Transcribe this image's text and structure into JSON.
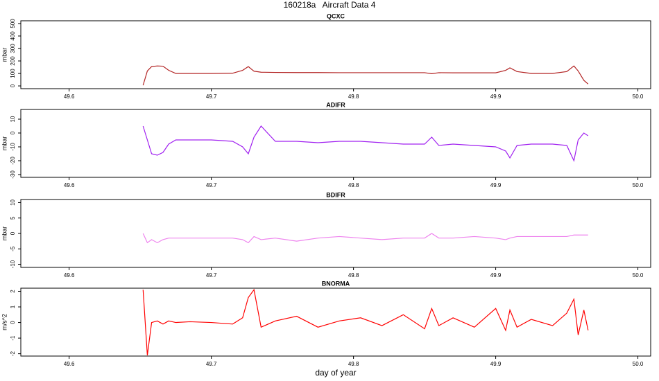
{
  "title": "160218a   Aircraft Data 4",
  "chart_data": [
    {
      "type": "line",
      "title": "QCXC",
      "ylabel": "mbar",
      "color": "#b22222",
      "x": [
        49.652,
        49.655,
        49.658,
        49.662,
        49.666,
        49.67,
        49.675,
        49.685,
        49.7,
        49.715,
        49.722,
        49.726,
        49.73,
        49.735,
        49.745,
        49.76,
        49.775,
        49.79,
        49.805,
        49.82,
        49.835,
        49.85,
        49.855,
        49.86,
        49.87,
        49.885,
        49.9,
        49.907,
        49.91,
        49.915,
        49.925,
        49.94,
        49.95,
        49.955,
        49.958,
        49.962,
        49.965
      ],
      "values": [
        5,
        120,
        155,
        160,
        158,
        125,
        100,
        100,
        100,
        102,
        125,
        155,
        118,
        110,
        108,
        107,
        107,
        106,
        106,
        106,
        106,
        106,
        98,
        106,
        105,
        105,
        105,
        125,
        145,
        115,
        100,
        100,
        115,
        160,
        120,
        45,
        15
      ],
      "xlim": [
        49.566,
        50.009
      ],
      "xticks": [
        49.6,
        49.7,
        49.8,
        49.9,
        {
          "value": 50,
          "label": "50.0"
        }
      ],
      "ylim": [
        -22,
        522
      ],
      "yticks": [
        0,
        100,
        200,
        300,
        400,
        500
      ]
    },
    {
      "type": "line",
      "title": "ADIFR",
      "ylabel": "mbar",
      "color": "#a020f0",
      "x": [
        49.652,
        49.655,
        49.658,
        49.662,
        49.666,
        49.67,
        49.675,
        49.685,
        49.7,
        49.715,
        49.722,
        49.726,
        49.73,
        49.735,
        49.745,
        49.76,
        49.775,
        49.79,
        49.805,
        49.82,
        49.835,
        49.85,
        49.855,
        49.86,
        49.87,
        49.885,
        49.9,
        49.907,
        49.91,
        49.915,
        49.925,
        49.94,
        49.95,
        49.955,
        49.958,
        49.962,
        49.965
      ],
      "values": [
        5,
        -5,
        -15,
        -16,
        -14,
        -8,
        -5,
        -5,
        -5,
        -6,
        -10,
        -15,
        -3,
        5,
        -6,
        -6,
        -7,
        -6,
        -6,
        -7,
        -8,
        -8,
        -3,
        -9,
        -8,
        -9,
        -10,
        -13,
        -18,
        -9,
        -8,
        -8,
        -9,
        -20,
        -5,
        0,
        -2
      ],
      "xlim": [
        49.566,
        50.009
      ],
      "xticks": [
        49.6,
        49.7,
        49.8,
        49.9,
        {
          "value": 50,
          "label": "50.0"
        }
      ],
      "ylim": [
        -32,
        17
      ],
      "yticks": [
        10,
        0,
        -10,
        -20,
        -30
      ]
    },
    {
      "type": "line",
      "title": "BDIFR",
      "ylabel": "mbar",
      "color": "#ee82ee",
      "x": [
        49.652,
        49.655,
        49.658,
        49.662,
        49.666,
        49.67,
        49.675,
        49.685,
        49.7,
        49.715,
        49.722,
        49.726,
        49.73,
        49.735,
        49.745,
        49.76,
        49.775,
        49.79,
        49.805,
        49.82,
        49.835,
        49.85,
        49.855,
        49.86,
        49.87,
        49.885,
        49.9,
        49.907,
        49.91,
        49.915,
        49.925,
        49.94,
        49.95,
        49.955,
        49.958,
        49.962,
        49.965
      ],
      "values": [
        0,
        -3,
        -2,
        -3,
        -2,
        -1.5,
        -1.5,
        -1.5,
        -1.5,
        -1.5,
        -2,
        -3,
        -1,
        -2,
        -1.5,
        -2.5,
        -1.5,
        -1,
        -1.5,
        -2,
        -1.5,
        -1.5,
        0,
        -1.5,
        -1.5,
        -1,
        -1.5,
        -2,
        -1.5,
        -1,
        -1,
        -1,
        -1,
        -0.5,
        -0.5,
        -0.5,
        -0.5
      ],
      "xlim": [
        49.566,
        50.009
      ],
      "xticks": [
        49.6,
        49.7,
        49.8,
        49.9,
        {
          "value": 50,
          "label": "50.0"
        }
      ],
      "ylim": [
        -11,
        11
      ],
      "yticks": [
        10,
        5,
        0,
        -5,
        -10
      ]
    },
    {
      "type": "line",
      "title": "BNORMA",
      "ylabel": "m/s^2",
      "xlabel": "day of year",
      "color": "#ff0000",
      "x": [
        49.652,
        49.655,
        49.658,
        49.662,
        49.666,
        49.67,
        49.675,
        49.685,
        49.7,
        49.715,
        49.722,
        49.726,
        49.73,
        49.735,
        49.745,
        49.76,
        49.775,
        49.79,
        49.805,
        49.82,
        49.835,
        49.85,
        49.855,
        49.86,
        49.87,
        49.885,
        49.9,
        49.907,
        49.91,
        49.915,
        49.925,
        49.94,
        49.95,
        49.955,
        49.958,
        49.962,
        49.965
      ],
      "values": [
        2.1,
        -2.1,
        0,
        0.1,
        -0.1,
        0.1,
        0,
        0.05,
        0,
        -0.1,
        0.3,
        1.6,
        2.1,
        -0.3,
        0.1,
        0.4,
        -0.3,
        0.1,
        0.3,
        -0.2,
        0.5,
        -0.4,
        0.9,
        -0.2,
        0.3,
        -0.3,
        0.9,
        -0.5,
        0.8,
        -0.3,
        0.2,
        -0.2,
        0.6,
        1.5,
        -0.8,
        0.8,
        -0.5
      ],
      "xlim": [
        49.566,
        50.009
      ],
      "xticks": [
        49.6,
        49.7,
        49.8,
        49.9,
        {
          "value": 50,
          "label": "50.0"
        }
      ],
      "ylim": [
        -2.15,
        2.2
      ],
      "yticks": [
        2,
        1,
        0,
        -1,
        -2
      ]
    }
  ]
}
